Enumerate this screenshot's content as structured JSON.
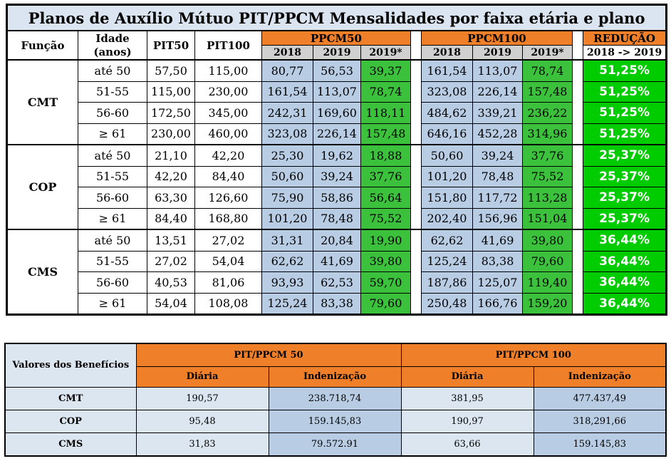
{
  "top_table": {
    "title": "Planos de Auxílio Mútuo PIT/PPCM  Mensalidades por faixa etária e plano",
    "headers": {
      "funcao": "Função",
      "idade_line1": "Idade",
      "idade_line2": "(anos)",
      "pit50": "PIT50",
      "pit100": "PIT100",
      "ppcm50": "PPCM50",
      "ppcm100": "PPCM100",
      "reducao": "REDUÇÃO",
      "reducao_sub": "2018 -> 2019",
      "y2018": "2018",
      "y2019": "2019",
      "y2019s": "2019*"
    },
    "groups": [
      {
        "funcao": "CMT",
        "rows": [
          {
            "idade": "até 50",
            "pit50": "57,50",
            "pit100": "115,00",
            "p50_2018": "80,77",
            "p50_2019": "56,53",
            "p50_2019s": "39,37",
            "p100_2018": "161,54",
            "p100_2019": "113,07",
            "p100_2019s": "78,74",
            "reducao": "51,25%"
          },
          {
            "idade": "51-55",
            "pit50": "115,00",
            "pit100": "230,00",
            "p50_2018": "161,54",
            "p50_2019": "113,07",
            "p50_2019s": "78,74",
            "p100_2018": "323,08",
            "p100_2019": "226,14",
            "p100_2019s": "157,48",
            "reducao": "51,25%"
          },
          {
            "idade": "56-60",
            "pit50": "172,50",
            "pit100": "345,00",
            "p50_2018": "242,31",
            "p50_2019": "169,60",
            "p50_2019s": "118,11",
            "p100_2018": "484,62",
            "p100_2019": "339,21",
            "p100_2019s": "236,22",
            "reducao": "51,25%"
          },
          {
            "idade": "≥ 61",
            "pit50": "230,00",
            "pit100": "460,00",
            "p50_2018": "323,08",
            "p50_2019": "226,14",
            "p50_2019s": "157,48",
            "p100_2018": "646,16",
            "p100_2019": "452,28",
            "p100_2019s": "314,96",
            "reducao": "51,25%"
          }
        ]
      },
      {
        "funcao": "COP",
        "rows": [
          {
            "idade": "até 50",
            "pit50": "21,10",
            "pit100": "42,20",
            "p50_2018": "25,30",
            "p50_2019": "19,62",
            "p50_2019s": "18,88",
            "p100_2018": "50,60",
            "p100_2019": "39,24",
            "p100_2019s": "37,76",
            "reducao": "25,37%"
          },
          {
            "idade": "51-55",
            "pit50": "42,20",
            "pit100": "84,40",
            "p50_2018": "50,60",
            "p50_2019": "39,24",
            "p50_2019s": "37,76",
            "p100_2018": "101,20",
            "p100_2019": "78,48",
            "p100_2019s": "75,52",
            "reducao": "25,37%"
          },
          {
            "idade": "56-60",
            "pit50": "63,30",
            "pit100": "126,60",
            "p50_2018": "75,90",
            "p50_2019": "58,86",
            "p50_2019s": "56,64",
            "p100_2018": "151,80",
            "p100_2019": "117,72",
            "p100_2019s": "113,28",
            "reducao": "25,37%"
          },
          {
            "idade": "≥ 61",
            "pit50": "84,40",
            "pit100": "168,80",
            "p50_2018": "101,20",
            "p50_2019": "78,48",
            "p50_2019s": "75,52",
            "p100_2018": "202,40",
            "p100_2019": "156,96",
            "p100_2019s": "151,04",
            "reducao": "25,37%"
          }
        ]
      },
      {
        "funcao": "CMS",
        "rows": [
          {
            "idade": "até 50",
            "pit50": "13,51",
            "pit100": "27,02",
            "p50_2018": "31,31",
            "p50_2019": "20,84",
            "p50_2019s": "19,90",
            "p100_2018": "62,62",
            "p100_2019": "41,69",
            "p100_2019s": "39,80",
            "reducao": "36,44%"
          },
          {
            "idade": "51-55",
            "pit50": "27,02",
            "pit100": "54,04",
            "p50_2018": "62,62",
            "p50_2019": "41,69",
            "p50_2019s": "39,80",
            "p100_2018": "125,24",
            "p100_2019": "83,38",
            "p100_2019s": "79,60",
            "reducao": "36,44%"
          },
          {
            "idade": "56-60",
            "pit50": "40,53",
            "pit100": "81,06",
            "p50_2018": "93,93",
            "p50_2019": "62,53",
            "p50_2019s": "59,70",
            "p100_2018": "187,86",
            "p100_2019": "125,07",
            "p100_2019s": "119,40",
            "reducao": "36,44%"
          },
          {
            "idade": "≥ 61",
            "pit50": "54,04",
            "pit100": "108,08",
            "p50_2018": "125,24",
            "p50_2019": "83,38",
            "p50_2019s": "79,60",
            "p100_2018": "250,48",
            "p100_2019": "166,76",
            "p100_2019s": "159,20",
            "reducao": "36,44%"
          }
        ]
      }
    ]
  },
  "bottom_table": {
    "corner_label": "Valores dos Benefícios",
    "plan50": "PIT/PPCM 50",
    "plan100": "PIT/PPCM 100",
    "diaria": "Diária",
    "indenizacao": "Indenização",
    "rows": [
      {
        "funcao": "CMT",
        "d50": "190,57",
        "i50": "238.718,74",
        "d100": "381,95",
        "i100": "477.437,49"
      },
      {
        "funcao": "COP",
        "d50": "95,48",
        "i50": "159.145,83",
        "d100": "190,97",
        "i100": "318,291,66"
      },
      {
        "funcao": "CMS",
        "d50": "31,83",
        "i50": "79.572.91",
        "d100": "63,66",
        "i100": "159.145,83"
      }
    ]
  },
  "colors": {
    "title_bg": "#dbe5f1",
    "orange": "#f07f2a",
    "light_blue": "#b8cce4",
    "green": "#3cc13c",
    "bright_green": "#00cc00",
    "grey": "#d0d0d0"
  }
}
